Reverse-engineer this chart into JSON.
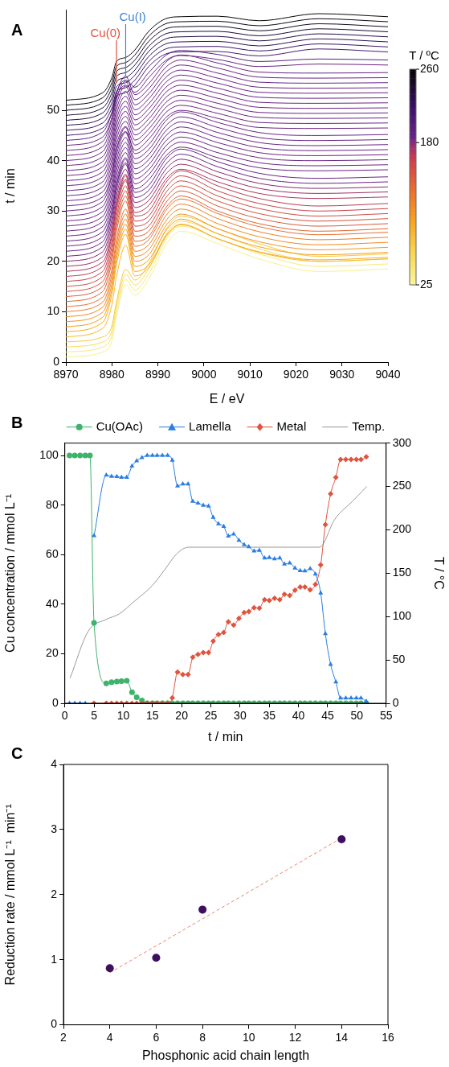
{
  "chart_data": [
    {
      "type": "line",
      "title": "A",
      "xlabel": "E / eV",
      "ylabel": "t / min",
      "clabel": "T / ºC",
      "clim": [
        25,
        260
      ],
      "cticks": [
        25,
        180,
        260
      ],
      "marker": "none",
      "xlim": [
        8970,
        9040
      ],
      "xticks": [
        8970,
        8980,
        8990,
        9000,
        9010,
        9020,
        9030,
        9040
      ],
      "ylim": [
        0,
        70
      ],
      "yticks": [
        0,
        10,
        20,
        30,
        40,
        50
      ],
      "ref_lines": [
        {
          "axis": "x",
          "value": 8981,
          "label": "Cu(0)",
          "color": "#e3503f"
        },
        {
          "axis": "x",
          "value": 8983,
          "label": "Cu(I)",
          "color": "#3f82d8"
        }
      ],
      "x": [
        8970,
        8978,
        8980,
        8981,
        8983,
        8985,
        8988,
        8992,
        8995,
        9003,
        9012,
        9025,
        9040
      ],
      "series": [
        {
          "color": "#f6f28e",
          "values": [
            1,
            2,
            4.2,
            9,
            15.4,
            13.3,
            16.5,
            23.7,
            26,
            23.5,
            20.5,
            18,
            18.5
          ]
        },
        {
          "color": "#f7ea78",
          "values": [
            2,
            3,
            5.2,
            10,
            16.4,
            14.3,
            17.5,
            24.7,
            27,
            24.5,
            21.5,
            19,
            19.5
          ]
        },
        {
          "color": "#f8dc5c",
          "values": [
            3,
            4,
            6.2,
            11,
            17.4,
            15.3,
            18.5,
            25.7,
            28,
            25.5,
            22.5,
            20,
            20.5
          ]
        },
        {
          "color": "#f9c83c",
          "values": [
            4,
            5,
            7.2,
            12,
            18.4,
            16.3,
            19.5,
            26.7,
            29,
            26.5,
            23.5,
            21,
            21.5
          ]
        },
        {
          "color": "#f9b82a",
          "values": [
            5,
            6.7,
            11.4,
            17,
            23.2,
            17.1,
            18.8,
            25.2,
            27.3,
            24.5,
            21.8,
            20,
            20.5
          ]
        },
        {
          "color": "#f8aa1e",
          "values": [
            6,
            7.9,
            13.5,
            19.4,
            25.4,
            18,
            19.3,
            25.4,
            27.4,
            24.5,
            21.9,
            20.3,
            20.8
          ]
        },
        {
          "color": "#f69e1c",
          "values": [
            7,
            8.9,
            14.5,
            20.4,
            26.4,
            19,
            20.3,
            26.4,
            28.4,
            25.5,
            22.9,
            21.3,
            21.8
          ]
        },
        {
          "color": "#f39420",
          "values": [
            8,
            9.9,
            15.5,
            21.4,
            27.4,
            20,
            21.3,
            27.4,
            29.4,
            26.5,
            23.9,
            22.3,
            22.8
          ]
        },
        {
          "color": "#f08a24",
          "values": [
            9,
            10.9,
            16.5,
            22.4,
            28.4,
            21,
            22.3,
            28.4,
            30.4,
            27.5,
            24.9,
            23.3,
            23.8
          ]
        },
        {
          "color": "#ec7e2a",
          "values": [
            10,
            11.9,
            17.5,
            23.4,
            29.4,
            22,
            23.3,
            29.4,
            31.4,
            28.5,
            25.9,
            24.3,
            24.8
          ]
        },
        {
          "color": "#e67230",
          "values": [
            11,
            12.9,
            18.5,
            24.4,
            30.4,
            23,
            24.3,
            30.4,
            32.4,
            29.5,
            26.9,
            25.3,
            25.8
          ]
        },
        {
          "color": "#e06634",
          "values": [
            12,
            14,
            20,
            26,
            32,
            24,
            25,
            31,
            33,
            30,
            27.5,
            26,
            26.5
          ]
        },
        {
          "color": "#da5a3a",
          "values": [
            13,
            15,
            21,
            27,
            33,
            25,
            26,
            32,
            34,
            31,
            28.5,
            27,
            27.5
          ]
        },
        {
          "color": "#d4523e",
          "values": [
            14,
            16,
            22,
            28,
            34,
            26,
            27,
            33,
            35,
            32,
            29.5,
            28,
            28.5
          ]
        },
        {
          "color": "#ce4a44",
          "values": [
            15,
            17,
            23,
            29,
            35,
            27,
            28,
            34,
            36,
            33,
            30.5,
            29,
            29.5
          ]
        },
        {
          "color": "#c6424a",
          "values": [
            16,
            18,
            24,
            30,
            36,
            28,
            29,
            35,
            37,
            34,
            31.5,
            30,
            30.5
          ]
        },
        {
          "color": "#bc3a52",
          "values": [
            17,
            19,
            25,
            31,
            37,
            29,
            30,
            36,
            38,
            35,
            32.5,
            31,
            31.5
          ]
        },
        {
          "color": "#b0345a",
          "values": [
            18,
            19.9,
            25.5,
            31.1,
            36.3,
            29.7,
            31.1,
            36.6,
            38.3,
            35.8,
            33.5,
            32.5,
            32.8
          ]
        },
        {
          "color": "#9c2e66",
          "values": [
            19,
            20.9,
            26.5,
            32.1,
            37.3,
            30.7,
            32.1,
            37.6,
            39.3,
            36.8,
            34.5,
            33.5,
            33.8
          ]
        },
        {
          "color": "#862a72",
          "values": [
            20,
            21.9,
            27.5,
            33.1,
            38.3,
            31.7,
            33.1,
            38.6,
            40.3,
            37.8,
            35.5,
            34.5,
            34.8
          ]
        },
        {
          "color": "#6a2585",
          "values": [
            21,
            22.9,
            28.5,
            34.1,
            39.3,
            32.7,
            34.1,
            39.6,
            41.3,
            38.8,
            36.5,
            35.5,
            35.8
          ]
        },
        {
          "color": "#6a2585",
          "values": [
            22,
            23.9,
            29.5,
            35.1,
            40.3,
            33.7,
            35.1,
            40.6,
            42.3,
            39.8,
            37.5,
            36.5,
            36.8
          ]
        },
        {
          "color": "#6a2585",
          "values": [
            23,
            24.9,
            30,
            35.1,
            39.6,
            34.4,
            36.2,
            41.2,
            42.7,
            40.6,
            38.6,
            38,
            38.2
          ]
        },
        {
          "color": "#6a2585",
          "values": [
            24,
            25.9,
            31,
            36.1,
            40.6,
            35.4,
            37.2,
            42.2,
            43.7,
            41.6,
            39.6,
            39,
            39.2
          ]
        },
        {
          "color": "#6a2585",
          "values": [
            25,
            26.9,
            32,
            37.1,
            41.6,
            36.4,
            38.2,
            43.2,
            44.7,
            42.6,
            40.6,
            40,
            40.2
          ]
        },
        {
          "color": "#6a2585",
          "values": [
            26,
            27.9,
            33,
            38.1,
            42.6,
            37.4,
            39.2,
            44.2,
            45.7,
            43.6,
            41.6,
            41,
            41.2
          ]
        },
        {
          "color": "#6a2585",
          "values": [
            27,
            28.9,
            34,
            39.1,
            43.6,
            38.4,
            40.2,
            45.2,
            46.7,
            44.6,
            42.6,
            42,
            42.2
          ]
        },
        {
          "color": "#6a2585",
          "values": [
            28,
            29.9,
            35,
            40.1,
            44.6,
            39.4,
            41.2,
            46.2,
            47.7,
            45.6,
            43.6,
            43,
            43.2
          ]
        },
        {
          "color": "#6a2585",
          "values": [
            29,
            30.9,
            36,
            41.1,
            45.6,
            40.4,
            42.2,
            47.2,
            48.7,
            46.6,
            44.6,
            44,
            44.2
          ]
        },
        {
          "color": "#6a2585",
          "values": [
            30,
            31.9,
            37,
            42.1,
            46.6,
            41.4,
            43.2,
            48.2,
            49.7,
            47.6,
            45.6,
            45,
            45.2
          ]
        },
        {
          "color": "#6a2585",
          "values": [
            31,
            32.8,
            37.4,
            42.2,
            45.8,
            42.1,
            44.3,
            48.8,
            50,
            48.4,
            46.6,
            46.4,
            46.5
          ]
        },
        {
          "color": "#6a2585",
          "values": [
            32,
            33.8,
            38.4,
            43.2,
            46.8,
            43.1,
            45.3,
            49.8,
            51,
            49.4,
            47.6,
            47.4,
            47.5
          ]
        },
        {
          "color": "#6a2585",
          "values": [
            33,
            34.8,
            39.4,
            44.2,
            47.8,
            44.1,
            46.3,
            50.8,
            52,
            50.4,
            48.6,
            48.4,
            48.5
          ]
        },
        {
          "color": "#6a2585",
          "values": [
            34,
            35.8,
            40.4,
            45.2,
            48.8,
            45.1,
            47.3,
            51.8,
            53,
            51.4,
            49.6,
            49.4,
            49.5
          ]
        },
        {
          "color": "#6a2585",
          "values": [
            35,
            36.8,
            41.4,
            46.2,
            49.8,
            46.1,
            48.3,
            52.8,
            54,
            52.4,
            50.6,
            50.4,
            50.5
          ]
        },
        {
          "color": "#6a2585",
          "values": [
            36,
            37.8,
            42.4,
            47.2,
            50.8,
            47.1,
            49.3,
            53.8,
            55,
            53.4,
            51.6,
            51.4,
            51.5
          ]
        },
        {
          "color": "#6a2585",
          "values": [
            37,
            38.8,
            43.4,
            48.2,
            51.8,
            48.1,
            50.3,
            54.8,
            56,
            54.4,
            52.6,
            52.4,
            52.5
          ]
        },
        {
          "color": "#6a2585",
          "values": [
            38,
            39.8,
            44.4,
            49.2,
            52.8,
            49.1,
            51.3,
            55.8,
            57,
            55.4,
            53.6,
            53.4,
            53.5
          ]
        },
        {
          "color": "#6a2585",
          "values": [
            39,
            40.8,
            45.4,
            50.2,
            53.8,
            50.1,
            52.3,
            56.8,
            58,
            56.4,
            54.6,
            54.4,
            54.5
          ]
        },
        {
          "color": "#6a2585",
          "values": [
            40,
            41.8,
            46.4,
            51.2,
            54.8,
            51.1,
            53.3,
            57.8,
            59,
            57.4,
            55.6,
            55.4,
            55.5
          ]
        },
        {
          "color": "#6a2585",
          "values": [
            41,
            42.8,
            47.4,
            52.2,
            55.8,
            52.1,
            54.3,
            58.8,
            60,
            58.4,
            56.6,
            56.4,
            56.5
          ]
        },
        {
          "color": "#6a2585",
          "values": [
            42,
            43.8,
            48.4,
            53.2,
            56.8,
            53.1,
            55.3,
            59.8,
            61,
            59.4,
            57.6,
            57.4,
            57.5
          ]
        },
        {
          "color": "#6a2585",
          "values": [
            43,
            44.7,
            48.6,
            52.6,
            55,
            53.6,
            56.5,
            60.1,
            60.9,
            60.1,
            58.7,
            59.2,
            59
          ]
        },
        {
          "color": "#5a2080",
          "values": [
            44,
            45.7,
            49.6,
            53.6,
            56,
            54.6,
            57.5,
            61.1,
            61.9,
            61.1,
            59.7,
            60.2,
            60
          ]
        },
        {
          "color": "#481a72",
          "values": [
            45,
            46.5,
            49.5,
            52.7,
            53.5,
            55,
            58.7,
            61.3,
            61.6,
            61.7,
            60.8,
            62.2,
            61.6
          ]
        },
        {
          "color": "#3a1464",
          "values": [
            46,
            47.5,
            50.5,
            53.7,
            54.5,
            56,
            59.7,
            62.3,
            62.6,
            62.7,
            61.8,
            63.2,
            62.6
          ]
        },
        {
          "color": "#2e1056",
          "values": [
            47,
            48.5,
            51.5,
            54.7,
            55.5,
            57,
            60.7,
            63.3,
            63.6,
            63.7,
            62.8,
            64.2,
            63.6
          ]
        },
        {
          "color": "#240c46",
          "values": [
            48,
            49.5,
            52.5,
            55.7,
            56.5,
            58,
            61.7,
            64.3,
            64.6,
            64.7,
            63.8,
            65.2,
            64.6
          ]
        },
        {
          "color": "#1a0a36",
          "values": [
            49,
            50.5,
            53.5,
            56.7,
            57.5,
            59,
            62.7,
            65.3,
            65.6,
            65.7,
            64.8,
            66.2,
            65.6
          ]
        },
        {
          "color": "#120826",
          "values": [
            50,
            51.5,
            54.5,
            57.7,
            58.5,
            60,
            63.7,
            66.3,
            66.6,
            66.7,
            65.8,
            67.2,
            66.6
          ]
        },
        {
          "color": "#0c0616",
          "values": [
            51,
            52.5,
            55.5,
            58.7,
            59.5,
            61,
            64.7,
            67.3,
            67.6,
            67.7,
            66.8,
            68.2,
            67.6
          ]
        },
        {
          "color": "#080808",
          "values": [
            52,
            53.5,
            56.5,
            59.7,
            60.5,
            62,
            65.7,
            68.3,
            68.6,
            68.7,
            67.8,
            69.2,
            68.6
          ]
        }
      ]
    },
    {
      "type": "line",
      "title": "B",
      "xlabel": "t / min",
      "ylabel": "Cu concentration / mmol L⁻¹",
      "y2label": "T / °C",
      "legend": "top",
      "xlim": [
        0,
        55
      ],
      "xticks": [
        0,
        5,
        10,
        15,
        20,
        25,
        30,
        35,
        40,
        45,
        50,
        55
      ],
      "ylim": [
        0,
        105
      ],
      "yticks": [
        0,
        20,
        40,
        60,
        80,
        100
      ],
      "y2lim": [
        0,
        300
      ],
      "y2ticks": [
        0,
        50,
        100,
        150,
        200,
        250,
        300
      ],
      "x": [
        0.8,
        1.7,
        2.6,
        3.5,
        4.3,
        5.0,
        7.1,
        8.0,
        8.9,
        9.7,
        10.6,
        11.5,
        12.3,
        13.2,
        14.1,
        15.0,
        15.8,
        16.7,
        17.6,
        18.4,
        19.3,
        20.2,
        21.1,
        21.9,
        22.8,
        23.7,
        24.6,
        25.4,
        26.3,
        27.2,
        28.0,
        28.9,
        29.8,
        30.7,
        31.5,
        32.4,
        33.3,
        34.2,
        35.0,
        35.9,
        36.8,
        37.6,
        38.5,
        39.4,
        40.3,
        41.1,
        42.0,
        42.9,
        43.8,
        44.6,
        45.5,
        46.4,
        47.2,
        48.1,
        49.0,
        49.9,
        50.7,
        51.6
      ],
      "series": [
        {
          "name": "Cu(OAc)",
          "color": "#3db36b",
          "marker": "circle",
          "values": [
            100,
            100,
            100,
            100,
            100,
            32.5,
            8.0,
            8.5,
            8.8,
            8.9,
            9.1,
            4.5,
            2.4,
            1.1,
            0,
            0,
            0,
            0,
            0,
            0,
            0,
            0,
            0,
            0,
            0,
            0,
            0,
            0,
            0,
            0,
            0,
            0,
            0,
            0,
            0,
            0,
            0,
            0,
            0,
            0,
            0,
            0,
            0,
            0,
            0,
            0,
            0,
            0,
            0,
            0,
            0,
            0,
            0,
            0,
            0,
            0,
            0,
            0
          ]
        },
        {
          "name": "Lamella",
          "color": "#2a7de1",
          "marker": "triangle",
          "values": [
            0,
            0,
            0,
            0,
            null,
            67.6,
            92.1,
            91.6,
            91.5,
            91.2,
            91.2,
            95.7,
            97.8,
            99.1,
            100,
            100,
            100,
            100,
            100,
            98.1,
            87.7,
            88.5,
            88.5,
            81.5,
            80.8,
            79.9,
            79.6,
            75,
            72.4,
            71.4,
            67.5,
            68.3,
            65.8,
            64.0,
            63.2,
            61.5,
            61.7,
            58.6,
            58.8,
            58.3,
            58.6,
            56.2,
            56.6,
            54.6,
            53.5,
            53.4,
            54.3,
            52.1,
            44.5,
            28.1,
            15.7,
            8.6,
            2.1,
            2.1,
            2.1,
            2.1,
            2.1,
            0.8
          ]
        },
        {
          "name": "Metal",
          "color": "#e0533d",
          "marker": "diamond",
          "values": [
            null,
            null,
            null,
            null,
            null,
            0,
            0,
            0,
            0,
            0,
            0,
            0,
            0,
            0,
            0,
            0,
            0,
            0,
            0,
            2.2,
            12.6,
            11.6,
            11.6,
            18.6,
            19.7,
            20.5,
            20.5,
            25.1,
            27.8,
            28.6,
            32.9,
            31.6,
            34.3,
            36.6,
            37,
            38.6,
            38.4,
            41.8,
            41.5,
            42.4,
            41.8,
            44,
            43.5,
            45.6,
            46.9,
            46.9,
            45.8,
            48,
            55.9,
            72.1,
            84.5,
            91.2,
            98.4,
            98.4,
            98.4,
            98.4,
            98.4,
            99.5
          ]
        },
        {
          "name": "Temp.",
          "color": "#999999",
          "marker": "none",
          "axis": "y2",
          "x": [
            0.9,
            4.0,
            7.2,
            9.3,
            11.8,
            15,
            17.1,
            19.1,
            21.2,
            43.6,
            46.2,
            49.4,
            51.7
          ],
          "values": [
            29,
            83,
            97,
            103,
            117,
            136,
            154,
            172,
            180,
            180,
            212,
            234,
            250
          ]
        }
      ]
    },
    {
      "type": "scatter",
      "title": "C",
      "xlabel": "Phosphonic acid chain length",
      "ylabel": "Reduction rate / mmol L⁻¹  min⁻¹",
      "xlim": [
        2,
        16
      ],
      "xticks": [
        2,
        4,
        6,
        8,
        10,
        12,
        14,
        16
      ],
      "ylim": [
        0,
        4
      ],
      "yticks": [
        0,
        1,
        2,
        3,
        4
      ],
      "series": [
        {
          "color": "#3d0f5e",
          "marker": "circle",
          "x": [
            4,
            6,
            8,
            14
          ],
          "values": [
            0.87,
            1.03,
            1.77,
            2.85
          ]
        },
        {
          "type": "line",
          "color": "#f08070",
          "marker": "none",
          "line_style": "dashed",
          "x": [
            4,
            14
          ],
          "values": [
            0.8,
            2.87
          ]
        }
      ]
    }
  ]
}
